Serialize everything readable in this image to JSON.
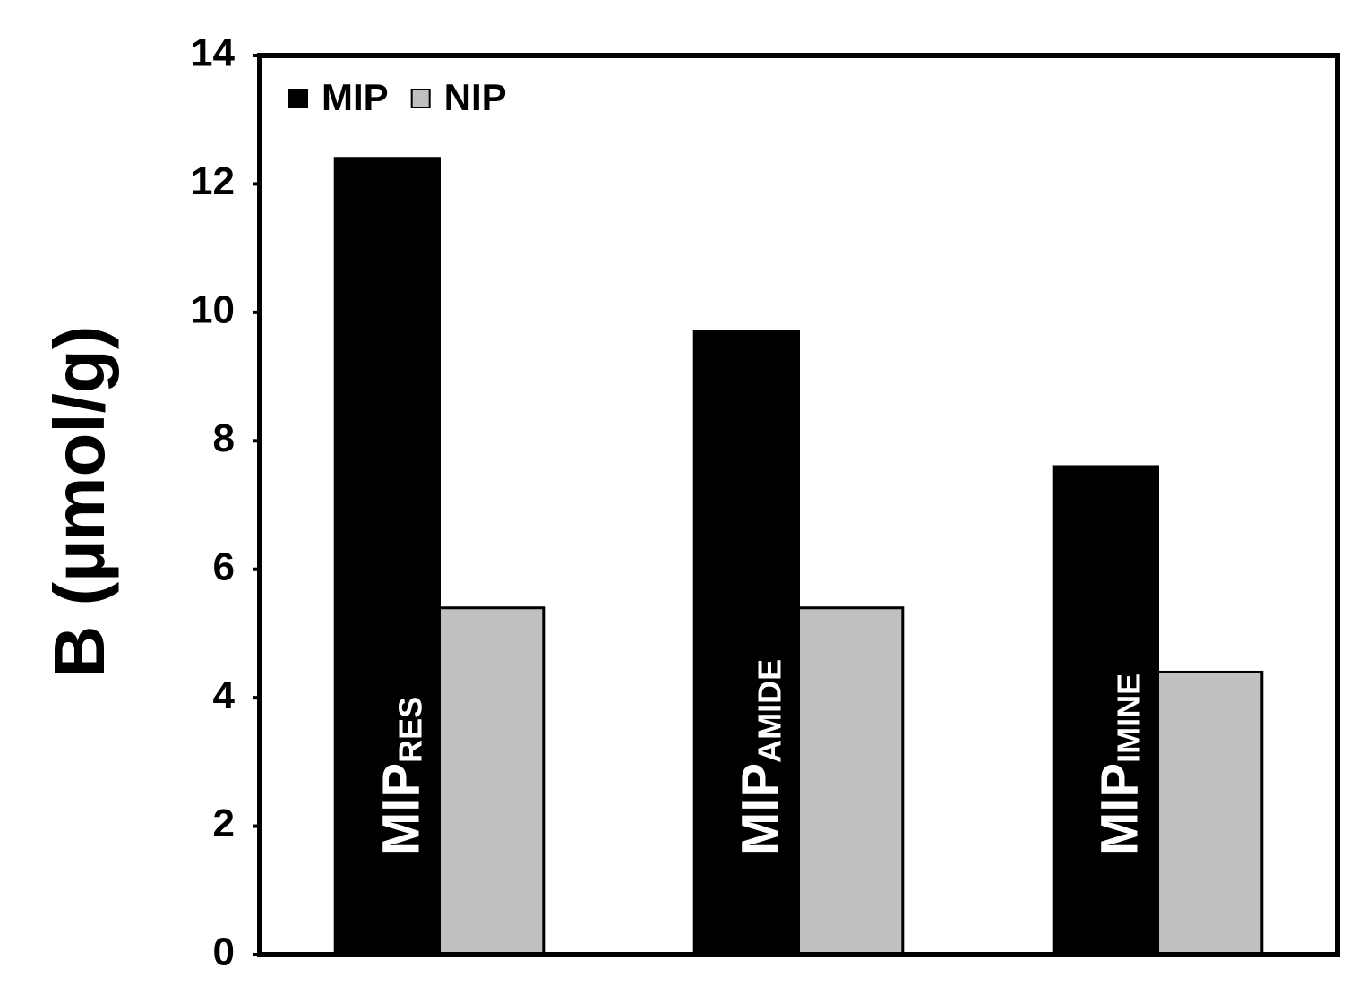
{
  "chart_data": {
    "type": "bar",
    "y_label": "B (µmol/g)",
    "categories": [
      null,
      null,
      null
    ],
    "annotations": [
      {
        "text": "MIP",
        "subscript": "RES"
      },
      {
        "text": "MIP",
        "subscript": "AMIDE"
      },
      {
        "text": "MIP",
        "subscript": "IMINE"
      }
    ],
    "series": [
      {
        "name": "MIP",
        "color": "#000000",
        "values": [
          12.4,
          9.7,
          7.6
        ]
      },
      {
        "name": "NIP",
        "color": "#c0c0c0",
        "values": [
          5.4,
          5.4,
          4.4
        ]
      }
    ],
    "ylim": [
      0,
      14
    ],
    "yticks": [
      0,
      2,
      4,
      6,
      8,
      10,
      12,
      14
    ],
    "grid": false,
    "legend": "top-left"
  }
}
